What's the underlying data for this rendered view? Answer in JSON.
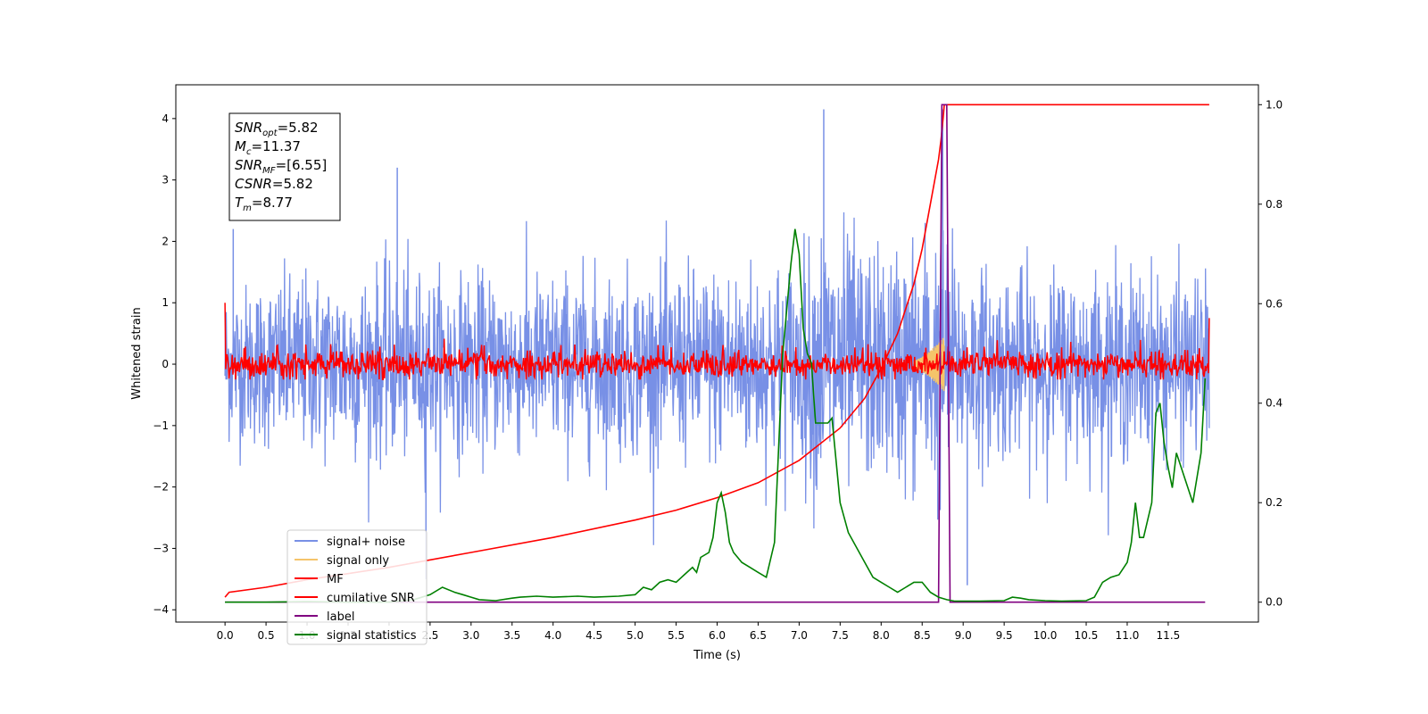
{
  "chart_data": {
    "type": "line",
    "title": "",
    "xlabel": "Time (s)",
    "ylabel": "Whitened strain",
    "xlim": [
      -0.6,
      12.6
    ],
    "ylim": [
      -4.2,
      4.55
    ],
    "y2lim": [
      -0.04,
      1.04
    ],
    "grid": false,
    "xticks": [
      "0.0",
      "0.5",
      "1.0",
      "1.5",
      "2.0",
      "2.5",
      "3.0",
      "3.5",
      "4.0",
      "4.5",
      "5.0",
      "5.5",
      "6.0",
      "6.5",
      "7.0",
      "7.5",
      "8.0",
      "8.5",
      "9.0",
      "9.5",
      "10.0",
      "10.5",
      "11.0",
      "11.5"
    ],
    "yticks": [
      "4",
      "3",
      "2",
      "1",
      "0",
      "−1",
      "−2",
      "−3",
      "−4"
    ],
    "y2ticks": [
      "1.0",
      "0.8",
      "0.6",
      "0.4",
      "0.2",
      "0.0"
    ],
    "annotation": {
      "lines": [
        {
          "sym": "SNR",
          "sub": "opt",
          "value": "=5.82"
        },
        {
          "sym": "M",
          "sub": "c",
          "value": "=11.37"
        },
        {
          "sym": "SNR",
          "sub": "MF",
          "value": "=[6.55]"
        },
        {
          "sym": "CSNR",
          "sub": "",
          "value": "=5.82"
        },
        {
          "sym": "T",
          "sub": "m",
          "value": "=8.77"
        }
      ]
    },
    "legend_position": "lower-left",
    "series": [
      {
        "name": "signal+ noise",
        "color": "#7890e6",
        "axis": "left",
        "kind": "noise",
        "x_range": [
          0,
          12.0
        ],
        "envelope": [
          [
            0,
            2.2
          ],
          [
            1.0,
            2.6
          ],
          [
            2.0,
            2.7
          ],
          [
            3.0,
            2.5
          ],
          [
            4.0,
            2.6
          ],
          [
            5.0,
            2.6
          ],
          [
            6.0,
            2.8
          ],
          [
            7.0,
            3.0
          ],
          [
            7.3,
            4.15
          ],
          [
            8.0,
            3.2
          ],
          [
            8.75,
            4.15
          ],
          [
            9.0,
            2.8
          ],
          [
            10.0,
            2.6
          ],
          [
            11.0,
            2.7
          ],
          [
            12.0,
            2.5
          ]
        ],
        "spikes": [
          [
            7.3,
            4.15
          ],
          [
            8.75,
            4.15
          ],
          [
            2.1,
            3.2
          ],
          [
            9.05,
            -3.6
          ],
          [
            2.45,
            -3.5
          ],
          [
            0.1,
            2.2
          ]
        ]
      },
      {
        "name": "signal only",
        "color": "#f5c46a",
        "axis": "left",
        "kind": "chirp",
        "x": [
          8.4,
          8.5,
          8.6,
          8.7,
          8.77
        ],
        "amplitude": [
          0.05,
          0.12,
          0.22,
          0.35,
          0.45
        ]
      },
      {
        "name": "MF",
        "color": "#ff0000",
        "axis": "left",
        "kind": "mf-noise",
        "x_range": [
          0,
          12.0
        ],
        "base_level": 0.25,
        "start_spike": 1.0,
        "end_value": 0.75
      },
      {
        "name": "cumilative SNR",
        "color": "#ff0000",
        "axis": "right",
        "x": [
          0,
          0.05,
          0.5,
          1.0,
          2.0,
          3.0,
          4.0,
          5.0,
          5.5,
          6.0,
          6.5,
          7.0,
          7.5,
          7.8,
          8.0,
          8.2,
          8.4,
          8.5,
          8.6,
          8.7,
          8.73,
          8.76,
          8.77,
          8.9,
          10.0,
          11.0,
          12.0
        ],
        "y": [
          0.01,
          0.02,
          0.03,
          0.045,
          0.07,
          0.1,
          0.13,
          0.165,
          0.185,
          0.21,
          0.24,
          0.285,
          0.35,
          0.41,
          0.47,
          0.54,
          0.64,
          0.71,
          0.8,
          0.89,
          0.93,
          0.98,
          1.0,
          1.0,
          1.0,
          1.0,
          1.0
        ]
      },
      {
        "name": "label",
        "color": "#800080",
        "axis": "right",
        "x": [
          0,
          8.7,
          8.74,
          8.8,
          8.84,
          11.95
        ],
        "y": [
          0,
          0,
          1.0,
          1.0,
          0,
          0
        ]
      },
      {
        "name": "signal statistics",
        "color": "#008000",
        "axis": "right",
        "x": [
          0,
          0.5,
          1.0,
          1.5,
          2.0,
          2.3,
          2.5,
          2.65,
          2.8,
          2.9,
          3.0,
          3.1,
          3.3,
          3.5,
          3.6,
          3.8,
          4.0,
          4.3,
          4.5,
          4.8,
          5.0,
          5.1,
          5.2,
          5.3,
          5.4,
          5.5,
          5.6,
          5.7,
          5.75,
          5.8,
          5.9,
          5.95,
          6.0,
          6.05,
          6.1,
          6.15,
          6.2,
          6.25,
          6.3,
          6.4,
          6.5,
          6.6,
          6.7,
          6.8,
          6.9,
          6.95,
          7.0,
          7.05,
          7.1,
          7.15,
          7.2,
          7.3,
          7.35,
          7.4,
          7.5,
          7.55,
          7.6,
          7.8,
          7.9,
          8.0,
          8.1,
          8.2,
          8.3,
          8.4,
          8.5,
          8.6,
          8.7,
          8.8,
          8.9,
          9.0,
          9.2,
          9.5,
          9.6,
          9.7,
          9.8,
          10.0,
          10.2,
          10.5,
          10.6,
          10.7,
          10.8,
          10.9,
          11.0,
          11.05,
          11.1,
          11.15,
          11.2,
          11.3,
          11.35,
          11.4,
          11.45,
          11.5,
          11.55,
          11.6,
          11.7,
          11.8,
          11.9,
          11.95
        ],
        "y": [
          0.0,
          0.0,
          0.001,
          0.0,
          0.0,
          0.005,
          0.015,
          0.03,
          0.02,
          0.015,
          0.01,
          0.005,
          0.003,
          0.008,
          0.01,
          0.012,
          0.01,
          0.012,
          0.01,
          0.012,
          0.015,
          0.03,
          0.025,
          0.04,
          0.045,
          0.04,
          0.055,
          0.07,
          0.06,
          0.09,
          0.1,
          0.13,
          0.2,
          0.22,
          0.18,
          0.12,
          0.1,
          0.09,
          0.08,
          0.07,
          0.06,
          0.05,
          0.12,
          0.5,
          0.68,
          0.75,
          0.7,
          0.55,
          0.5,
          0.48,
          0.36,
          0.36,
          0.36,
          0.37,
          0.2,
          0.17,
          0.14,
          0.08,
          0.05,
          0.04,
          0.03,
          0.02,
          0.03,
          0.04,
          0.04,
          0.02,
          0.01,
          0.005,
          0.002,
          0.002,
          0.002,
          0.003,
          0.01,
          0.008,
          0.005,
          0.003,
          0.002,
          0.003,
          0.01,
          0.04,
          0.05,
          0.055,
          0.08,
          0.12,
          0.2,
          0.13,
          0.13,
          0.2,
          0.38,
          0.4,
          0.32,
          0.27,
          0.23,
          0.3,
          0.25,
          0.2,
          0.3,
          0.45
        ]
      }
    ]
  }
}
